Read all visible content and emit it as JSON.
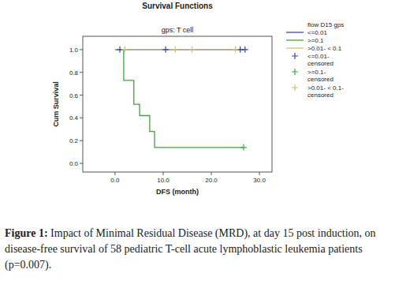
{
  "chart_data": {
    "type": "line",
    "title": "Survival Functions",
    "subtitle": "gps: T cell",
    "x_label": "DFS (month)",
    "y_label": "Cum Survival",
    "legend_title": "flow D15 gps",
    "legend": "right",
    "caption_label": "Figure 1:",
    "caption": "Impact of Minimal Residual Disease (MRD), at day 15 post induction, on disease-free survival of 58 pediatric T-cell acute lymphoblastic leukemia patients (p=0.007).",
    "xlim": [
      -6.7,
      32.6
    ],
    "ylim": [
      -0.076,
      1.117
    ],
    "xticks": [
      {
        "value": 0,
        "label": "0.0"
      },
      {
        "value": 10,
        "label": "10.0"
      },
      {
        "value": 20,
        "label": "20.0"
      },
      {
        "value": 30,
        "label": "30.0"
      }
    ],
    "yticks": [
      {
        "value": 0,
        "label": "0.0"
      },
      {
        "value": 0.2,
        "label": "0.2"
      },
      {
        "value": 0.4,
        "label": "0.4"
      },
      {
        "value": 0.6,
        "label": "0.6"
      },
      {
        "value": 0.8,
        "label": "0.8"
      },
      {
        "value": 1,
        "label": "1.0"
      }
    ],
    "series": [
      {
        "name": "<=0.01",
        "type": "line",
        "line_style": "step",
        "color": "#3b44a0",
        "x": [
          0,
          27.0
        ],
        "values": [
          1,
          1
        ]
      },
      {
        "name": ">=0.1",
        "type": "line",
        "line_style": "step",
        "color": "#3ca63c",
        "x": [
          0,
          1.8,
          3.9,
          5.1,
          7.2,
          8.2,
          26.7
        ],
        "values": [
          1,
          0.73,
          0.52,
          0.42,
          0.28,
          0.14,
          0.14
        ]
      },
      {
        "name": ">0.01- < 0.1",
        "type": "line",
        "line_style": "step",
        "color": "#c9c07e",
        "x": [
          0,
          27.0
        ],
        "values": [
          1,
          1
        ]
      },
      {
        "name": "<=0.01-censored",
        "type": "scatter",
        "marker": "plus",
        "color": "#3b44a0",
        "x": [
          1.0,
          10.5,
          26.0,
          27.0
        ],
        "values": [
          1,
          1,
          1,
          1
        ]
      },
      {
        "name": ">=0.1-censored",
        "type": "scatter",
        "marker": "plus",
        "color": "#3ca63c",
        "x": [
          26.7
        ],
        "values": [
          0.14
        ]
      },
      {
        "name": ">0.01- < 0.1-censored",
        "type": "scatter",
        "marker": "plus",
        "color": "#c9c07e",
        "x": [
          2.0,
          12.5,
          16.0,
          25.0
        ],
        "values": [
          1,
          1,
          1,
          1
        ]
      }
    ]
  }
}
